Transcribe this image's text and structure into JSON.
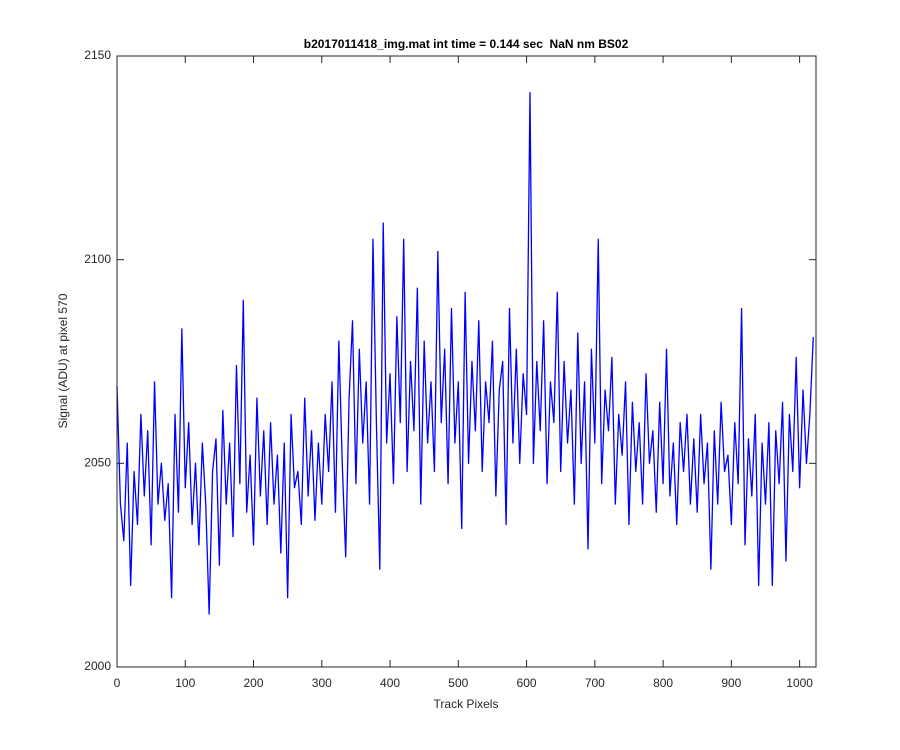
{
  "chart_data": {
    "type": "line",
    "title": "b2017011418_img.mat int time = 0.144 sec  NaN nm BS02",
    "x_label": "Track Pixels",
    "y_label": "Signal (ADU) at pixel 570",
    "color": "#0000ff",
    "xlim": [
      0,
      1024
    ],
    "ylim": [
      2000,
      2150
    ],
    "xticks": [
      0,
      100,
      200,
      300,
      400,
      500,
      600,
      700,
      800,
      900,
      1000
    ],
    "yticks": [
      2000,
      2050,
      2100,
      2150
    ],
    "grid": false,
    "x": [
      0,
      5,
      10,
      15,
      20,
      25,
      30,
      35,
      40,
      45,
      50,
      55,
      60,
      65,
      70,
      75,
      80,
      85,
      90,
      95,
      100,
      105,
      110,
      115,
      120,
      125,
      130,
      135,
      140,
      145,
      150,
      155,
      160,
      165,
      170,
      175,
      180,
      185,
      190,
      195,
      200,
      205,
      210,
      215,
      220,
      225,
      230,
      235,
      240,
      245,
      250,
      255,
      260,
      265,
      270,
      275,
      280,
      285,
      290,
      295,
      300,
      305,
      310,
      315,
      320,
      325,
      330,
      335,
      340,
      345,
      350,
      355,
      360,
      365,
      370,
      375,
      380,
      385,
      390,
      395,
      400,
      405,
      410,
      415,
      420,
      425,
      430,
      435,
      440,
      445,
      450,
      455,
      460,
      465,
      470,
      475,
      480,
      485,
      490,
      495,
      500,
      505,
      510,
      515,
      520,
      525,
      530,
      535,
      540,
      545,
      550,
      555,
      560,
      565,
      570,
      575,
      580,
      585,
      590,
      595,
      600,
      605,
      610,
      615,
      620,
      625,
      630,
      635,
      640,
      645,
      650,
      655,
      660,
      665,
      670,
      675,
      680,
      685,
      690,
      695,
      700,
      705,
      710,
      715,
      720,
      725,
      730,
      735,
      740,
      745,
      750,
      755,
      760,
      765,
      770,
      775,
      780,
      785,
      790,
      795,
      800,
      805,
      810,
      815,
      820,
      825,
      830,
      835,
      840,
      845,
      850,
      855,
      860,
      865,
      870,
      875,
      880,
      885,
      890,
      895,
      900,
      905,
      910,
      915,
      920,
      925,
      930,
      935,
      940,
      945,
      950,
      955,
      960,
      965,
      970,
      975,
      980,
      985,
      990,
      995,
      1000,
      1005,
      1010,
      1015,
      1020
    ],
    "values": [
      2069,
      2040,
      2031,
      2055,
      2020,
      2048,
      2035,
      2062,
      2042,
      2058,
      2030,
      2070,
      2040,
      2050,
      2036,
      2045,
      2017,
      2062,
      2038,
      2083,
      2044,
      2060,
      2035,
      2050,
      2030,
      2055,
      2040,
      2013,
      2048,
      2056,
      2025,
      2063,
      2040,
      2055,
      2032,
      2074,
      2045,
      2090,
      2038,
      2052,
      2030,
      2066,
      2042,
      2058,
      2035,
      2060,
      2040,
      2052,
      2028,
      2055,
      2017,
      2062,
      2044,
      2048,
      2035,
      2066,
      2042,
      2058,
      2036,
      2055,
      2040,
      2062,
      2048,
      2070,
      2038,
      2080,
      2050,
      2027,
      2066,
      2085,
      2045,
      2078,
      2055,
      2070,
      2040,
      2105,
      2060,
      2024,
      2109,
      2055,
      2072,
      2045,
      2086,
      2060,
      2105,
      2048,
      2075,
      2058,
      2093,
      2040,
      2080,
      2055,
      2070,
      2048,
      2102,
      2060,
      2078,
      2045,
      2088,
      2055,
      2070,
      2034,
      2092,
      2050,
      2075,
      2058,
      2085,
      2048,
      2070,
      2060,
      2080,
      2042,
      2068,
      2075,
      2035,
      2088,
      2055,
      2078,
      2050,
      2072,
      2062,
      2141,
      2050,
      2075,
      2058,
      2085,
      2045,
      2070,
      2060,
      2092,
      2048,
      2075,
      2055,
      2068,
      2040,
      2082,
      2050,
      2070,
      2029,
      2078,
      2055,
      2105,
      2045,
      2068,
      2058,
      2076,
      2040,
      2062,
      2052,
      2070,
      2035,
      2065,
      2048,
      2060,
      2040,
      2072,
      2050,
      2058,
      2038,
      2065,
      2045,
      2078,
      2042,
      2055,
      2035,
      2060,
      2048,
      2062,
      2040,
      2056,
      2038,
      2062,
      2045,
      2055,
      2024,
      2058,
      2040,
      2065,
      2048,
      2052,
      2035,
      2060,
      2045,
      2088,
      2030,
      2056,
      2042,
      2062,
      2020,
      2055,
      2040,
      2060,
      2020,
      2058,
      2045,
      2065,
      2026,
      2062,
      2048,
      2076,
      2044,
      2068,
      2050,
      2062,
      2081
    ]
  }
}
